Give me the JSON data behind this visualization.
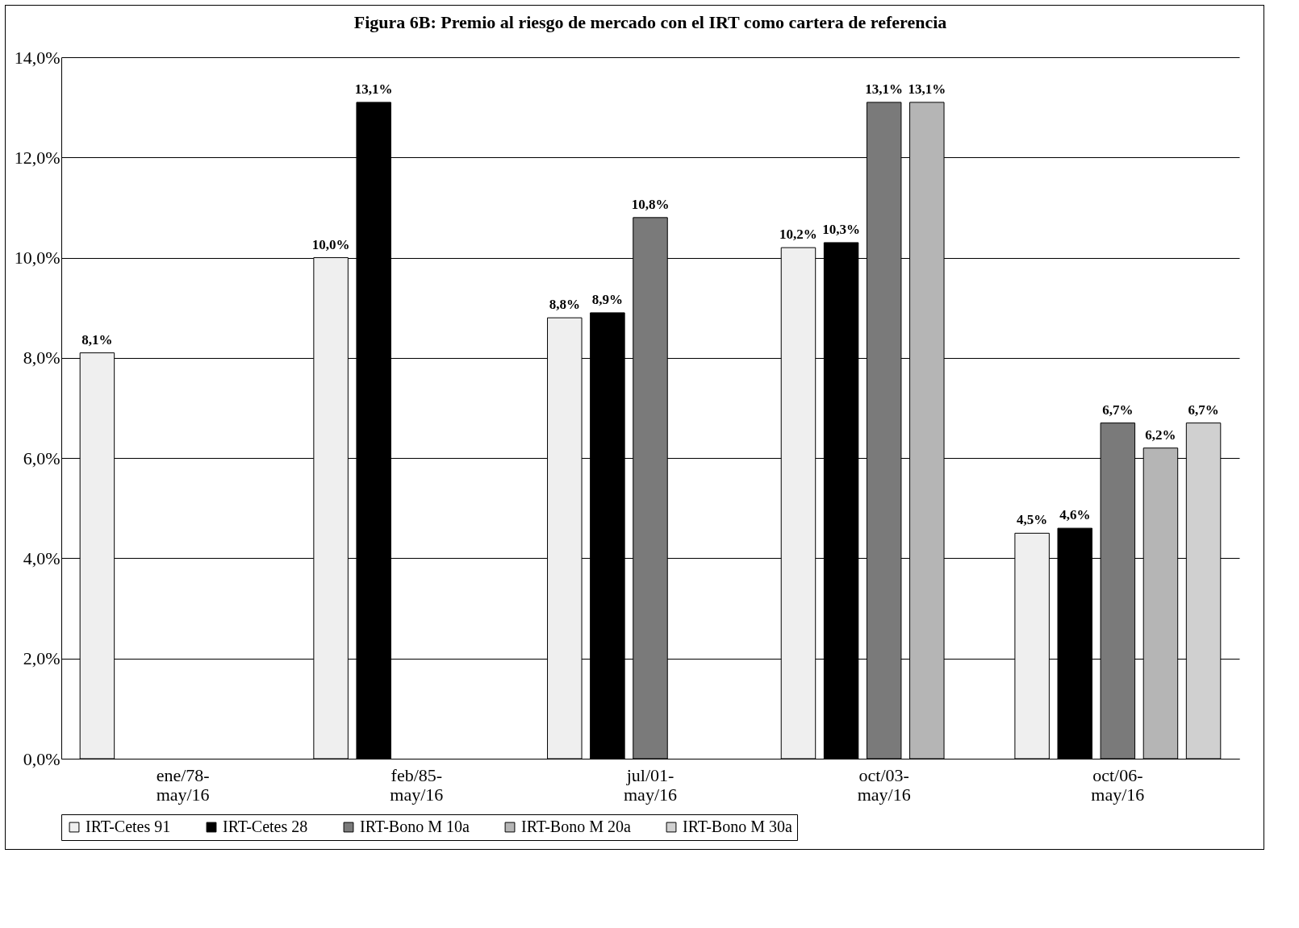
{
  "chart_data": {
    "type": "bar",
    "title": "Figura 6B: Premio al riesgo de mercado con el IRT como cartera de referencia",
    "categories": [
      "ene/78-may/16",
      "feb/85-may/16",
      "jul/01-may/16",
      "oct/03-may/16",
      "oct/06-may/16"
    ],
    "series": [
      {
        "name": "IRT-Cetes 91",
        "color": "#efefef",
        "values": [
          8.1,
          10.0,
          8.8,
          10.2,
          4.5
        ],
        "value_labels": [
          "8,1%",
          "10,0%",
          "8,8%",
          "10,2%",
          "4,5%"
        ]
      },
      {
        "name": "IRT-Cetes 28",
        "color": "#000000",
        "values": [
          null,
          13.1,
          8.9,
          10.3,
          4.6
        ],
        "value_labels": [
          null,
          "13,1%",
          "8,9%",
          "10,3%",
          "4,6%"
        ]
      },
      {
        "name": "IRT-Bono M 10a",
        "color": "#7a7a7a",
        "values": [
          null,
          null,
          10.8,
          13.1,
          6.7
        ],
        "value_labels": [
          null,
          null,
          "10,8%",
          "13,1%",
          "6,7%"
        ]
      },
      {
        "name": "IRT-Bono M 20a",
        "color": "#b5b5b5",
        "values": [
          null,
          null,
          null,
          13.1,
          6.2
        ],
        "value_labels": [
          null,
          null,
          null,
          "13,1%",
          "6,2%"
        ]
      },
      {
        "name": "IRT-Bono M 30a",
        "color": "#d0d0d0",
        "values": [
          null,
          null,
          null,
          null,
          6.7
        ],
        "value_labels": [
          null,
          null,
          null,
          null,
          "6,7%"
        ]
      }
    ],
    "ylim": [
      0,
      14
    ],
    "yticks": [
      {
        "value": 0,
        "label": "0,0%"
      },
      {
        "value": 2,
        "label": "2,0%"
      },
      {
        "value": 4,
        "label": "4,0%"
      },
      {
        "value": 6,
        "label": "6,0%"
      },
      {
        "value": 8,
        "label": "8,0%"
      },
      {
        "value": 10,
        "label": "10,0%"
      },
      {
        "value": 12,
        "label": "12,0%"
      },
      {
        "value": 14,
        "label": "14,0%"
      }
    ],
    "grid": "y",
    "legend": "bottom"
  }
}
